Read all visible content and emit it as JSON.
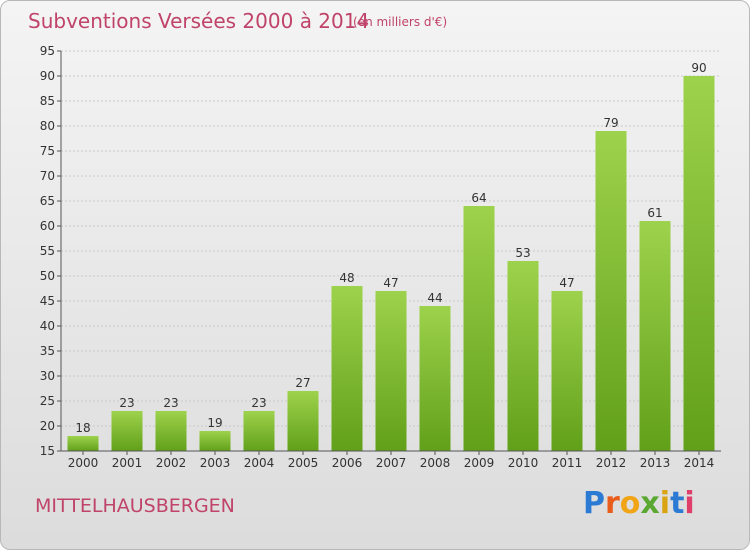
{
  "header": {
    "title": "Subventions Versées 2000 à 2014",
    "unit": "(en milliers d'€)"
  },
  "footer": {
    "commune": "MITTELHAUSBERGEN",
    "logo": [
      "P",
      "r",
      "o",
      "x",
      "i",
      "t",
      "i"
    ]
  },
  "colors": {
    "bar_top": "#9dd24c",
    "bar_bottom": "#62a01a",
    "title": "#c0436a"
  },
  "chart_data": {
    "type": "bar",
    "categories": [
      "2000",
      "2001",
      "2002",
      "2003",
      "2004",
      "2005",
      "2006",
      "2007",
      "2008",
      "2009",
      "2010",
      "2011",
      "2012",
      "2013",
      "2014"
    ],
    "values": [
      18,
      23,
      23,
      19,
      23,
      27,
      48,
      47,
      44,
      64,
      53,
      47,
      79,
      61,
      90
    ],
    "ylim": [
      15,
      95
    ],
    "yticks": [
      15,
      20,
      25,
      30,
      35,
      40,
      45,
      50,
      55,
      60,
      65,
      70,
      75,
      80,
      85,
      90,
      95
    ],
    "grid": true,
    "legend": "none"
  }
}
